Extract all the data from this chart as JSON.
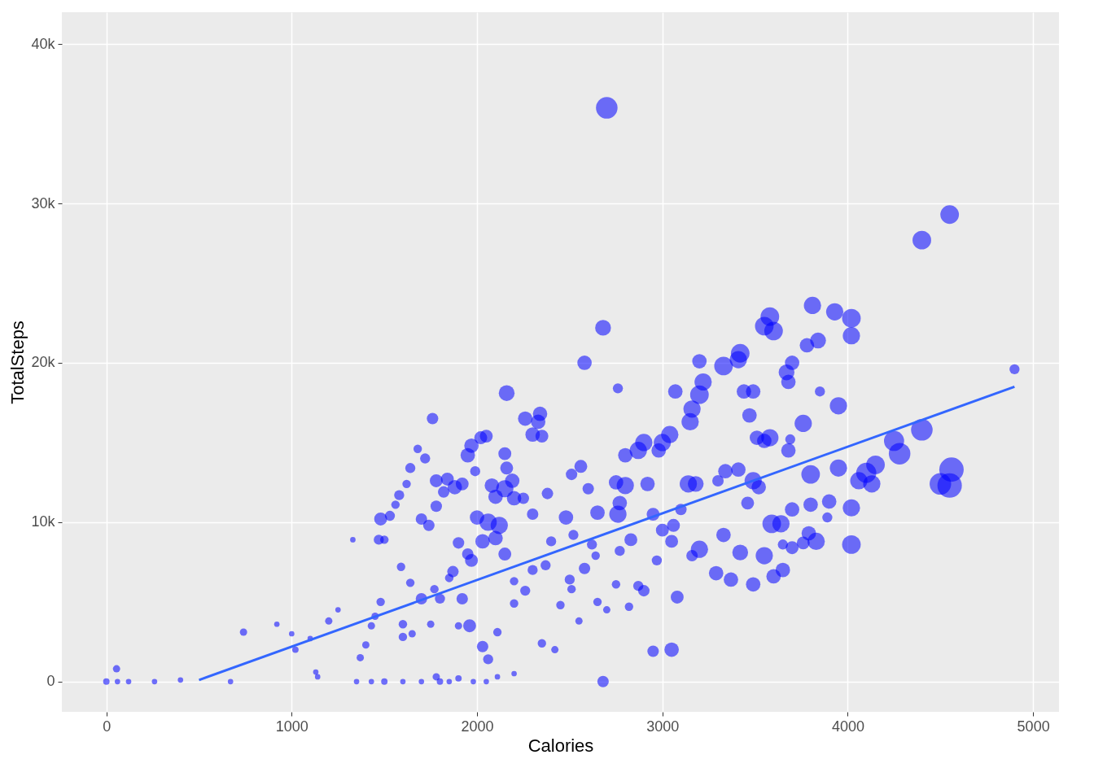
{
  "chart_data": {
    "type": "bubble",
    "xlabel": "Calories",
    "ylabel": "TotalSteps",
    "xlim": [
      -240,
      5140
    ],
    "ylim": [
      -1900,
      42000
    ],
    "xticks": [
      0,
      1000,
      2000,
      3000,
      4000,
      5000
    ],
    "yticks": [
      0,
      {
        "value": 10000,
        "label": "10k"
      },
      {
        "value": 20000,
        "label": "20k"
      },
      {
        "value": 30000,
        "label": "30k"
      },
      {
        "value": 40000,
        "label": "40k"
      }
    ],
    "grid": true,
    "series": [
      {
        "color": "#0000ff",
        "x": [
          2700,
          4550,
          4400,
          4900,
          2680,
          2580,
          2160,
          2760,
          1760,
          3810,
          3580,
          3550,
          3600,
          3930,
          4020,
          4020,
          3840,
          3780,
          3700,
          3670,
          3680,
          3420,
          3410,
          3330,
          3200,
          3220,
          3200,
          3160,
          3150,
          3070,
          3440,
          3490,
          3470,
          3850,
          3950,
          3760,
          3690,
          3680,
          3510,
          3580,
          3550,
          4250,
          4280,
          4400,
          4560,
          4550,
          4500,
          4150,
          4130,
          4060,
          4100,
          3950,
          3900,
          4020,
          4020,
          3890,
          3800,
          3800,
          3790,
          3830,
          3760,
          3700,
          3700,
          3650,
          3650,
          3590,
          3640,
          3600,
          3550,
          3520,
          3490,
          3460,
          3410,
          3340,
          3330,
          3300,
          3420,
          3370,
          3290,
          3490,
          3200,
          3160,
          3140,
          3180,
          3000,
          3040,
          2980,
          2900,
          2870,
          2800,
          2750,
          2800,
          2770,
          2760,
          2920,
          2950,
          3000,
          3050,
          2950,
          3080,
          2680,
          2560,
          2510,
          2480,
          2600,
          2650,
          2620,
          2580,
          2640,
          2520,
          2500,
          2510,
          2450,
          2550,
          2700,
          2400,
          2380,
          2340,
          2330,
          2260,
          2300,
          2350,
          2150,
          2160,
          2190,
          2150,
          2100,
          2080,
          2200,
          2250,
          2300,
          2050,
          2020,
          1970,
          1950,
          1990,
          1920,
          2000,
          2060,
          2120,
          2100,
          2030,
          2150,
          1950,
          1900,
          1970,
          1870,
          1880,
          1840,
          1780,
          1820,
          1780,
          1700,
          1740,
          1720,
          1680,
          1640,
          1620,
          1580,
          1560,
          1530,
          1480,
          1470,
          1500,
          1590,
          1640,
          1700,
          1770,
          1800,
          1850,
          1920,
          1960,
          2030,
          2060,
          2110,
          1900,
          1750,
          1600,
          1650,
          1600,
          1480,
          1450,
          1430,
          1400,
          1370,
          1330,
          1250,
          1200,
          1100,
          1020,
          1000,
          920,
          740,
          1130,
          1140,
          1350,
          1430,
          1500,
          1600,
          1700,
          1800,
          1850,
          1980,
          2050,
          1780,
          1900,
          2110,
          2200,
          0,
          55,
          60,
          120,
          260,
          400,
          670,
          2350,
          2420,
          2200,
          2260,
          2200,
          2300,
          2370,
          2870,
          2900,
          2970,
          3050,
          3060,
          3100,
          2830,
          2770,
          2750,
          2820,
          2650
        ],
        "values": [
          36000,
          29300,
          27700,
          19600,
          22200,
          20000,
          18100,
          18400,
          16500,
          23600,
          22900,
          22300,
          22000,
          23200,
          22800,
          21700,
          21400,
          21100,
          20000,
          19400,
          18800,
          20600,
          20200,
          19800,
          20100,
          18800,
          18000,
          17100,
          16300,
          18200,
          18200,
          18200,
          16700,
          18200,
          17300,
          16200,
          15200,
          14500,
          15300,
          15300,
          15100,
          15100,
          14300,
          15800,
          13300,
          12300,
          12400,
          13600,
          12400,
          12600,
          13100,
          13400,
          11300,
          10900,
          8600,
          10300,
          13000,
          11100,
          9300,
          8800,
          8700,
          10800,
          8400,
          8600,
          7000,
          9900,
          9900,
          6600,
          7900,
          12200,
          12600,
          11200,
          13300,
          13200,
          9200,
          12600,
          8100,
          6400,
          6800,
          6100,
          8300,
          7900,
          12400,
          12400,
          15000,
          15500,
          14500,
          15000,
          14500,
          14200,
          12500,
          12300,
          11200,
          10500,
          12400,
          10500,
          9500,
          2000,
          1900,
          5300,
          0,
          13500,
          13000,
          10300,
          12100,
          10600,
          8600,
          7100,
          7900,
          9200,
          6400,
          5800,
          4800,
          3800,
          4500,
          8800,
          11800,
          16800,
          16300,
          16500,
          15500,
          15400,
          14300,
          13400,
          12600,
          12100,
          11600,
          12300,
          11500,
          11500,
          10500,
          15400,
          15300,
          14800,
          14200,
          13200,
          12400,
          10300,
          10000,
          9800,
          9000,
          8800,
          8000,
          8000,
          8700,
          7600,
          6900,
          12200,
          12700,
          12600,
          11900,
          11000,
          10200,
          9800,
          14000,
          14600,
          13400,
          12400,
          11700,
          11100,
          10400,
          10200,
          8900,
          8900,
          7200,
          6200,
          5200,
          5800,
          5200,
          6500,
          5200,
          3500,
          2200,
          1400,
          3100,
          3500,
          3600,
          3600,
          3000,
          2800,
          5000,
          4100,
          3500,
          2300,
          1500,
          8900,
          4500,
          3800,
          2700,
          2000,
          3000,
          3600,
          3100,
          600,
          300,
          0,
          0,
          0,
          0,
          0,
          0,
          0,
          0,
          0,
          300,
          200,
          300,
          500,
          0,
          800,
          0,
          0,
          0,
          100,
          0,
          2400,
          2000,
          4900,
          5700,
          6300,
          7000,
          7300,
          6000,
          5700,
          7600,
          8800,
          9800,
          10800,
          8900,
          8200,
          6100,
          4700,
          5000
        ],
        "sizes": [
          0.78,
          0.58,
          0.58,
          0.17,
          0.42,
          0.35,
          0.42,
          0.17,
          0.22,
          0.5,
          0.58,
          0.58,
          0.58,
          0.5,
          0.58,
          0.5,
          0.42,
          0.35,
          0.35,
          0.42,
          0.35,
          0.58,
          0.5,
          0.58,
          0.35,
          0.5,
          0.58,
          0.5,
          0.5,
          0.35,
          0.35,
          0.35,
          0.35,
          0.17,
          0.5,
          0.5,
          0.17,
          0.35,
          0.35,
          0.5,
          0.35,
          0.68,
          0.78,
          0.78,
          1,
          1,
          0.78,
          0.58,
          0.5,
          0.5,
          0.68,
          0.5,
          0.35,
          0.5,
          0.58,
          0.17,
          0.58,
          0.35,
          0.35,
          0.5,
          0.28,
          0.35,
          0.28,
          0.17,
          0.35,
          0.58,
          0.5,
          0.35,
          0.5,
          0.35,
          0.5,
          0.28,
          0.35,
          0.35,
          0.35,
          0.22,
          0.42,
          0.35,
          0.35,
          0.35,
          0.5,
          0.22,
          0.5,
          0.42,
          0.5,
          0.5,
          0.35,
          0.5,
          0.5,
          0.35,
          0.35,
          0.5,
          0.35,
          0.5,
          0.35,
          0.28,
          0.28,
          0.35,
          0.22,
          0.28,
          0.22,
          0.28,
          0.22,
          0.35,
          0.22,
          0.35,
          0.17,
          0.22,
          0.12,
          0.17,
          0.17,
          0.12,
          0.12,
          0.09,
          0.09,
          0.17,
          0.22,
          0.35,
          0.35,
          0.35,
          0.35,
          0.28,
          0.28,
          0.28,
          0.35,
          0.5,
          0.35,
          0.35,
          0.35,
          0.22,
          0.22,
          0.28,
          0.28,
          0.35,
          0.35,
          0.17,
          0.28,
          0.35,
          0.5,
          0.5,
          0.35,
          0.35,
          0.28,
          0.22,
          0.22,
          0.28,
          0.22,
          0.35,
          0.28,
          0.28,
          0.22,
          0.22,
          0.22,
          0.22,
          0.17,
          0.12,
          0.17,
          0.12,
          0.17,
          0.12,
          0.17,
          0.28,
          0.17,
          0.12,
          0.12,
          0.12,
          0.22,
          0.12,
          0.17,
          0.12,
          0.22,
          0.28,
          0.22,
          0.17,
          0.12,
          0.09,
          0.09,
          0.12,
          0.09,
          0.12,
          0.12,
          0.09,
          0.09,
          0.09,
          0.09,
          0.05,
          0.05,
          0.09,
          0.05,
          0.07,
          0.05,
          0.05,
          0.09,
          0.05,
          0.05,
          0.05,
          0.05,
          0.07,
          0.05,
          0.05,
          0.07,
          0.05,
          0.05,
          0.05,
          0.09,
          0.07,
          0.05,
          0.05,
          0.07,
          0.09,
          0.05,
          0.05,
          0.05,
          0.05,
          0.05,
          0.12,
          0.09,
          0.12,
          0.17,
          0.12,
          0.17,
          0.17,
          0.17,
          0.22,
          0.17,
          0.28,
          0.28,
          0.22,
          0.28,
          0.17,
          0.12,
          0.12,
          0.12
        ]
      },
      {
        "type": "line",
        "color": "#3366ff",
        "x": [
          500,
          4900
        ],
        "values": [
          100,
          18500
        ]
      }
    ]
  }
}
